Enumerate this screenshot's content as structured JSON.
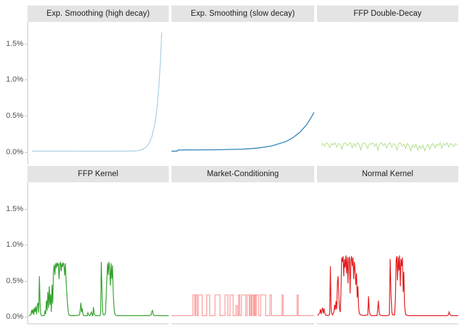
{
  "chart_data": {
    "type": "line",
    "layout": "facet_grid_2x3",
    "title": "",
    "xlabel": "",
    "ylabel": "",
    "x_axis_visible_labels": false,
    "grid": false,
    "legend": "none",
    "y_ticks": {
      "values": [
        0.0,
        0.5,
        1.0,
        1.5
      ],
      "labels": [
        "0.0%",
        "0.5%",
        "1.0%",
        "1.5%"
      ]
    },
    "ylim_row1": [
      -0.17,
      1.8
    ],
    "ylim_row2": [
      -0.1,
      1.87
    ],
    "y_unit": "percent",
    "panels": [
      {
        "title": "Exp. Smoothing (high decay)",
        "color": "#A6CEE3",
        "row": 1,
        "shape": "flat then exponential rise to ~1.65% at right edge",
        "points": [
          [
            0.03,
            0.015
          ],
          [
            0.2,
            0.015
          ],
          [
            0.4,
            0.014
          ],
          [
            0.6,
            0.014
          ],
          [
            0.7,
            0.015
          ],
          [
            0.75,
            0.017
          ],
          [
            0.78,
            0.021
          ],
          [
            0.8,
            0.031
          ],
          [
            0.82,
            0.046
          ],
          [
            0.84,
            0.074
          ],
          [
            0.86,
            0.123
          ],
          [
            0.88,
            0.214
          ],
          [
            0.9,
            0.379
          ],
          [
            0.91,
            0.507
          ],
          [
            0.92,
            0.68
          ],
          [
            0.93,
            0.913
          ],
          [
            0.94,
            1.228
          ],
          [
            0.95,
            1.653
          ]
        ]
      },
      {
        "title": "Exp. Smoothing (slow decay)",
        "color": "#1F78B4",
        "row": 1,
        "shape": "near-flat then smooth exponential rise to ~0.55% at right edge",
        "points": [
          [
            0,
            0.015
          ],
          [
            0.04,
            0.015
          ],
          [
            0.045,
            0.03
          ],
          [
            0.1,
            0.031
          ],
          [
            0.3,
            0.033
          ],
          [
            0.5,
            0.042
          ],
          [
            0.6,
            0.056
          ],
          [
            0.7,
            0.085
          ],
          [
            0.8,
            0.146
          ],
          [
            0.85,
            0.199
          ],
          [
            0.9,
            0.276
          ],
          [
            0.95,
            0.387
          ],
          [
            1,
            0.55
          ]
        ]
      },
      {
        "title": "FFP Double-Decay",
        "color": "#B2DF8A",
        "row": 1,
        "shape": "noisy band near 0.1% with downward spikes",
        "x0": 0.03,
        "dx": 0.0122,
        "values": [
          0.1,
          0.12,
          0.08,
          0.13,
          0.11,
          0.06,
          0.12,
          0.1,
          0.13,
          0.07,
          0.12,
          0.11,
          0.04,
          0.12,
          0.13,
          0.09,
          0.11,
          0.13,
          0.06,
          0.12,
          0.08,
          0.13,
          0.11,
          0.03,
          0.12,
          0.13,
          0.1,
          0.05,
          0.12,
          0.11,
          0.13,
          0.08,
          0.12,
          0.02,
          0.12,
          0.13,
          0.09,
          0.12,
          0.06,
          0.11,
          0.13,
          0.07,
          0.12,
          0.1,
          0.03,
          0.12,
          0.13,
          0.08,
          0.11,
          0.05,
          0.12,
          0.09,
          0.02,
          0.1,
          0.06,
          0.11,
          0.03,
          0.09,
          0.05,
          0.1,
          0.02,
          0.08,
          0.11,
          0.04,
          0.1,
          0.12,
          0.06,
          0.11,
          0.09,
          0.13,
          0.05,
          0.12,
          0.1,
          0.13,
          0.07,
          0.12,
          0.11,
          0.08,
          0.12,
          0.1
        ]
      },
      {
        "title": "FFP Kernel",
        "color": "#33A02C",
        "row": 2,
        "shape": "spiky clusters up to ~0.75% separated by flat ~0% stretches",
        "points": [
          [
            0.005,
            0.01
          ],
          [
            0.02,
            0.02
          ],
          [
            0.025,
            0.09
          ],
          [
            0.03,
            0.04
          ],
          [
            0.035,
            0.1
          ],
          [
            0.04,
            0.02
          ],
          [
            0.045,
            0.12
          ],
          [
            0.05,
            0.06
          ],
          [
            0.055,
            0.14
          ],
          [
            0.06,
            0.03
          ],
          [
            0.065,
            0.16
          ],
          [
            0.07,
            0.19
          ],
          [
            0.075,
            0.05
          ],
          [
            0.08,
            0.56
          ],
          [
            0.085,
            0.18
          ],
          [
            0.09,
            0.03
          ],
          [
            0.095,
            0.01
          ],
          [
            0.115,
            0.01
          ],
          [
            0.12,
            0.08
          ],
          [
            0.125,
            0.03
          ],
          [
            0.13,
            0.22
          ],
          [
            0.135,
            0.08
          ],
          [
            0.14,
            0.34
          ],
          [
            0.145,
            0.12
          ],
          [
            0.15,
            0.42
          ],
          [
            0.155,
            0.16
          ],
          [
            0.16,
            0.31
          ],
          [
            0.165,
            0.06
          ],
          [
            0.17,
            0.44
          ],
          [
            0.175,
            0.18
          ],
          [
            0.18,
            0.62
          ],
          [
            0.185,
            0.72
          ],
          [
            0.19,
            0.58
          ],
          [
            0.195,
            0.74
          ],
          [
            0.2,
            0.67
          ],
          [
            0.205,
            0.75
          ],
          [
            0.21,
            0.7
          ],
          [
            0.215,
            0.74
          ],
          [
            0.22,
            0.52
          ],
          [
            0.225,
            0.73
          ],
          [
            0.23,
            0.75
          ],
          [
            0.235,
            0.63
          ],
          [
            0.24,
            0.74
          ],
          [
            0.245,
            0.69
          ],
          [
            0.25,
            0.75
          ],
          [
            0.255,
            0.71
          ],
          [
            0.26,
            0.57
          ],
          [
            0.265,
            0.74
          ],
          [
            0.27,
            0.48
          ],
          [
            0.275,
            0.33
          ],
          [
            0.28,
            0.18
          ],
          [
            0.285,
            0.07
          ],
          [
            0.29,
            0.02
          ],
          [
            0.3,
            0.01
          ],
          [
            0.34,
            0.01
          ],
          [
            0.365,
            0.02
          ],
          [
            0.37,
            0.08
          ],
          [
            0.375,
            0.19
          ],
          [
            0.38,
            0.06
          ],
          [
            0.385,
            0.11
          ],
          [
            0.39,
            0.03
          ],
          [
            0.395,
            0.01
          ],
          [
            0.42,
            0.01
          ],
          [
            0.425,
            0.05
          ],
          [
            0.43,
            0.02
          ],
          [
            0.44,
            0.01
          ],
          [
            0.45,
            0.06
          ],
          [
            0.455,
            0.02
          ],
          [
            0.46,
            0.01
          ],
          [
            0.465,
            0.13
          ],
          [
            0.47,
            0.03
          ],
          [
            0.48,
            0.01
          ],
          [
            0.51,
            0.01
          ],
          [
            0.515,
            0.03
          ],
          [
            0.52,
            0.76
          ],
          [
            0.525,
            0.38
          ],
          [
            0.53,
            0.06
          ],
          [
            0.535,
            0.02
          ],
          [
            0.545,
            0.02
          ],
          [
            0.55,
            0.06
          ],
          [
            0.555,
            0.28
          ],
          [
            0.56,
            0.52
          ],
          [
            0.565,
            0.74
          ],
          [
            0.57,
            0.58
          ],
          [
            0.575,
            0.76
          ],
          [
            0.58,
            0.66
          ],
          [
            0.585,
            0.43
          ],
          [
            0.59,
            0.74
          ],
          [
            0.595,
            0.52
          ],
          [
            0.6,
            0.71
          ],
          [
            0.605,
            0.33
          ],
          [
            0.61,
            0.14
          ],
          [
            0.615,
            0.05
          ],
          [
            0.62,
            0.02
          ],
          [
            0.63,
            0.01
          ],
          [
            0.72,
            0.01
          ],
          [
            0.86,
            0.01
          ],
          [
            0.875,
            0.02
          ],
          [
            0.88,
            0.07
          ],
          [
            0.885,
            0.08
          ],
          [
            0.89,
            0.02
          ],
          [
            0.9,
            0.01
          ],
          [
            1,
            0.01
          ]
        ]
      },
      {
        "title": "Market-Conditioning",
        "color": "#FB9A99",
        "row": 2,
        "shape": "square pulses between ~0% and ~0.3%",
        "baseline": 0.01,
        "pulse_height_default": 0.3,
        "pulses": [
          [
            0.15,
            0.163,
            0.3
          ],
          [
            0.17,
            0.18,
            0.3
          ],
          [
            0.188,
            0.215,
            0.3
          ],
          [
            0.247,
            0.268,
            0.3
          ],
          [
            0.305,
            0.34,
            0.3
          ],
          [
            0.375,
            0.395,
            0.3
          ],
          [
            0.41,
            0.432,
            0.3
          ],
          [
            0.452,
            0.462,
            0.15
          ],
          [
            0.47,
            0.478,
            0.3
          ],
          [
            0.49,
            0.52,
            0.3
          ],
          [
            0.53,
            0.545,
            0.3
          ],
          [
            0.552,
            0.56,
            0.3
          ],
          [
            0.565,
            0.575,
            0.3
          ],
          [
            0.578,
            0.582,
            0.3
          ],
          [
            0.585,
            0.592,
            0.3
          ],
          [
            0.594,
            0.61,
            0.3
          ],
          [
            0.625,
            0.66,
            0.3
          ],
          [
            0.69,
            0.7,
            0.3
          ],
          [
            0.775,
            0.782,
            0.3
          ],
          [
            0.88,
            0.888,
            0.3
          ]
        ]
      },
      {
        "title": "Normal Kernel",
        "color": "#E31A1C",
        "row": 2,
        "shape": "spiky clusters up to ~0.85% separated by flat ~0% stretches",
        "points": [
          [
            0.005,
            0.01
          ],
          [
            0.02,
            0.05
          ],
          [
            0.025,
            0.1
          ],
          [
            0.03,
            0.03
          ],
          [
            0.035,
            0.09
          ],
          [
            0.04,
            0.12
          ],
          [
            0.045,
            0.04
          ],
          [
            0.05,
            0.11
          ],
          [
            0.055,
            0.05
          ],
          [
            0.06,
            0.02
          ],
          [
            0.075,
            0.01
          ],
          [
            0.09,
            0.02
          ],
          [
            0.095,
            0.7
          ],
          [
            0.1,
            0.12
          ],
          [
            0.105,
            0.04
          ],
          [
            0.11,
            0.02
          ],
          [
            0.12,
            0.06
          ],
          [
            0.125,
            0.16
          ],
          [
            0.13,
            0.09
          ],
          [
            0.135,
            0.21
          ],
          [
            0.14,
            0.1
          ],
          [
            0.145,
            0.48
          ],
          [
            0.15,
            0.56
          ],
          [
            0.155,
            0.28
          ],
          [
            0.16,
            0.1
          ],
          [
            0.165,
            0.06
          ],
          [
            0.17,
            0.32
          ],
          [
            0.175,
            0.82
          ],
          [
            0.18,
            0.76
          ],
          [
            0.185,
            0.84
          ],
          [
            0.19,
            0.56
          ],
          [
            0.195,
            0.8
          ],
          [
            0.2,
            0.68
          ],
          [
            0.205,
            0.85
          ],
          [
            0.21,
            0.6
          ],
          [
            0.215,
            0.83
          ],
          [
            0.22,
            0.46
          ],
          [
            0.225,
            0.8
          ],
          [
            0.23,
            0.83
          ],
          [
            0.235,
            0.32
          ],
          [
            0.24,
            0.78
          ],
          [
            0.245,
            0.84
          ],
          [
            0.25,
            0.7
          ],
          [
            0.255,
            0.82
          ],
          [
            0.26,
            0.52
          ],
          [
            0.265,
            0.76
          ],
          [
            0.27,
            0.64
          ],
          [
            0.275,
            0.44
          ],
          [
            0.28,
            0.6
          ],
          [
            0.285,
            0.26
          ],
          [
            0.29,
            0.42
          ],
          [
            0.295,
            0.12
          ],
          [
            0.3,
            0.04
          ],
          [
            0.31,
            0.02
          ],
          [
            0.33,
            0.01
          ],
          [
            0.36,
            0.02
          ],
          [
            0.365,
            0.28
          ],
          [
            0.37,
            0.09
          ],
          [
            0.375,
            0.03
          ],
          [
            0.385,
            0.01
          ],
          [
            0.425,
            0.01
          ],
          [
            0.43,
            0.1
          ],
          [
            0.435,
            0.22
          ],
          [
            0.44,
            0.06
          ],
          [
            0.445,
            0.02
          ],
          [
            0.46,
            0.01
          ],
          [
            0.5,
            0.01
          ],
          [
            0.512,
            0.02
          ],
          [
            0.518,
            0.8
          ],
          [
            0.524,
            0.32
          ],
          [
            0.53,
            0.06
          ],
          [
            0.535,
            0.02
          ],
          [
            0.55,
            0.02
          ],
          [
            0.555,
            0.24
          ],
          [
            0.56,
            0.78
          ],
          [
            0.565,
            0.84
          ],
          [
            0.57,
            0.5
          ],
          [
            0.575,
            0.83
          ],
          [
            0.58,
            0.64
          ],
          [
            0.585,
            0.85
          ],
          [
            0.59,
            0.42
          ],
          [
            0.595,
            0.8
          ],
          [
            0.6,
            0.7
          ],
          [
            0.605,
            0.82
          ],
          [
            0.61,
            0.34
          ],
          [
            0.615,
            0.62
          ],
          [
            0.62,
            0.16
          ],
          [
            0.625,
            0.06
          ],
          [
            0.63,
            0.02
          ],
          [
            0.65,
            0.01
          ],
          [
            0.78,
            0.01
          ],
          [
            0.92,
            0.01
          ],
          [
            0.93,
            0.02
          ],
          [
            0.935,
            0.06
          ],
          [
            0.94,
            0.03
          ],
          [
            0.95,
            0.01
          ],
          [
            1,
            0.01
          ]
        ]
      }
    ],
    "colors": {
      "header_bg": "#E4E4E4",
      "header_text": "#1A1A1A",
      "axis_text": "#4D4D4D",
      "axis_line": "#C9C9C9",
      "panel_bg": "#FFFFFF"
    }
  }
}
